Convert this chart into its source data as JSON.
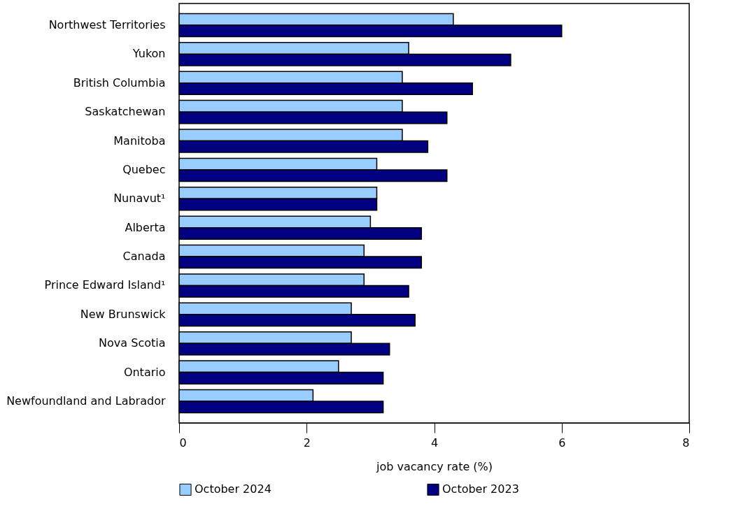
{
  "chart_data": {
    "type": "bar",
    "orientation": "horizontal",
    "categories": [
      "Northwest Territories",
      "Yukon",
      "British Columbia",
      "Saskatchewan",
      "Manitoba",
      "Quebec",
      "Nunavut¹",
      "Alberta",
      "Canada",
      "Prince Edward Island¹",
      "New Brunswick",
      "Nova Scotia",
      "Ontario",
      "Newfoundland and Labrador"
    ],
    "series": [
      {
        "name": "October 2024",
        "color": "#99ccff",
        "values": [
          4.3,
          3.6,
          3.5,
          3.5,
          3.5,
          3.1,
          3.1,
          3.0,
          2.9,
          2.9,
          2.7,
          2.7,
          2.5,
          2.1
        ]
      },
      {
        "name": "October 2023",
        "color": "#000080",
        "values": [
          6.0,
          5.2,
          4.6,
          4.2,
          3.9,
          4.2,
          3.1,
          3.8,
          3.8,
          3.6,
          3.7,
          3.3,
          3.2,
          3.2
        ]
      }
    ],
    "xlabel": "job vacancy rate (%)",
    "xlim": [
      0,
      8
    ],
    "xticks": [
      0,
      2,
      4,
      6,
      8
    ],
    "grid": false,
    "legend": "bottom"
  }
}
